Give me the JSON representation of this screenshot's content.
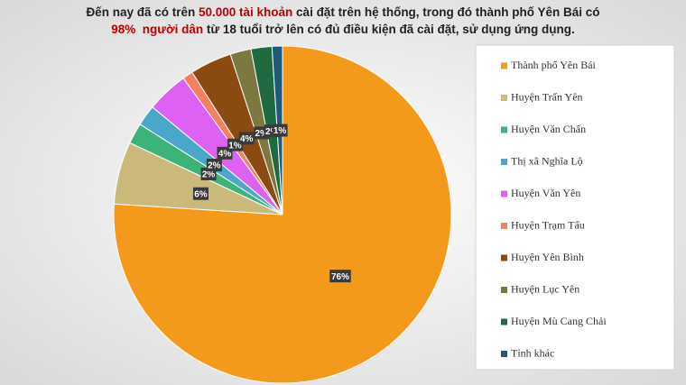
{
  "chart_data": {
    "type": "pie",
    "title_lines": [
      [
        {
          "text": "Đến nay đã có trên "
        },
        {
          "text": "50.000 tài khoản",
          "highlight": true
        },
        {
          "text": " cài đặt trên hệ thống, trong đó thành phố Yên Bái có"
        }
      ],
      [
        {
          "text": "98%  người dân",
          "highlight": true
        },
        {
          "text": " từ 18 tuổi trở lên có đủ điều kiện đã cài đặt, sử dụng ứng dụng."
        }
      ]
    ],
    "highlight_color": "#c00000",
    "categories": [
      "Thành phố Yên Bái",
      "Huyện Trấn Yên",
      "Huyện Văn Chấn",
      "Thị xã Nghĩa Lộ",
      "Huyện Văn Yên",
      "Huyện Trạm Tấu",
      "Huyện Yên Bình",
      "Huyện Lục Yên",
      "Huyện Mù Cang Chải",
      "Tỉnh khác"
    ],
    "values": [
      76,
      6,
      2,
      2,
      4,
      1,
      4,
      2,
      2,
      1
    ],
    "value_labels": [
      "76%",
      "6%",
      "2%",
      "2%",
      "4%",
      "1%",
      "4%",
      "2%",
      "2%",
      "1%"
    ],
    "colors": [
      "#f39a1c",
      "#cbb97c",
      "#3db37a",
      "#4ba7c9",
      "#dd62f3",
      "#f4805e",
      "#8b4a10",
      "#7d7840",
      "#1f6a3e",
      "#1f5a7c"
    ],
    "legend": "right"
  }
}
